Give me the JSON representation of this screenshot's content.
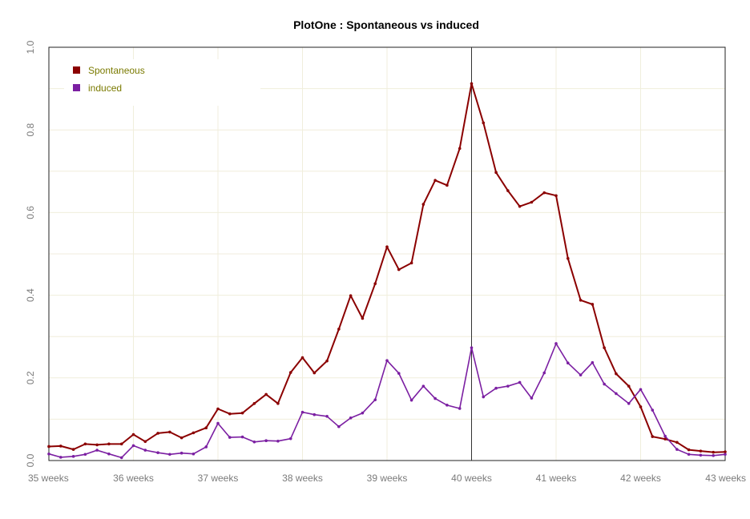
{
  "chart_data": {
    "type": "line",
    "title": "PlotOne : Spontaneous vs induced",
    "xlabel": "",
    "ylabel": "",
    "x_range": [
      35,
      43
    ],
    "ylim": [
      0,
      1.0
    ],
    "x_ticks": [
      {
        "value": 35,
        "label": "35 weeks"
      },
      {
        "value": 36,
        "label": "36 weeks"
      },
      {
        "value": 37,
        "label": "37 weeks"
      },
      {
        "value": 38,
        "label": "38 weeks"
      },
      {
        "value": 39,
        "label": "39 weeks"
      },
      {
        "value": 40,
        "label": "40 weeks"
      },
      {
        "value": 41,
        "label": "41 weeks"
      },
      {
        "value": 42,
        "label": "42 weeks"
      },
      {
        "value": 43,
        "label": "43 weeks"
      }
    ],
    "y_ticks": [
      {
        "value": 0.0,
        "label": "0.0"
      },
      {
        "value": 0.2,
        "label": "0.2"
      },
      {
        "value": 0.4,
        "label": "0.4"
      },
      {
        "value": 0.6,
        "label": "0.6"
      },
      {
        "value": 0.8,
        "label": "0.8"
      },
      {
        "value": 1.0,
        "label": "1.0"
      }
    ],
    "grid": true,
    "reference_line_x": 40,
    "legend_position": "top-left",
    "series": [
      {
        "name": "Spontaneous",
        "color": "#8b0000",
        "points": [
          [
            35.0,
            0.034
          ],
          [
            35.14,
            0.035
          ],
          [
            35.29,
            0.027
          ],
          [
            35.43,
            0.04
          ],
          [
            35.57,
            0.038
          ],
          [
            35.71,
            0.04
          ],
          [
            35.86,
            0.04
          ],
          [
            36.0,
            0.063
          ],
          [
            36.14,
            0.046
          ],
          [
            36.29,
            0.066
          ],
          [
            36.43,
            0.069
          ],
          [
            36.57,
            0.055
          ],
          [
            36.71,
            0.067
          ],
          [
            36.86,
            0.079
          ],
          [
            37.0,
            0.125
          ],
          [
            37.14,
            0.113
          ],
          [
            37.29,
            0.115
          ],
          [
            37.43,
            0.138
          ],
          [
            37.57,
            0.16
          ],
          [
            37.71,
            0.138
          ],
          [
            37.86,
            0.213
          ],
          [
            38.0,
            0.249
          ],
          [
            38.14,
            0.212
          ],
          [
            38.29,
            0.241
          ],
          [
            38.43,
            0.318
          ],
          [
            38.57,
            0.399
          ],
          [
            38.71,
            0.344
          ],
          [
            38.86,
            0.428
          ],
          [
            39.0,
            0.517
          ],
          [
            39.14,
            0.462
          ],
          [
            39.29,
            0.478
          ],
          [
            39.43,
            0.62
          ],
          [
            39.57,
            0.678
          ],
          [
            39.71,
            0.666
          ],
          [
            39.86,
            0.755
          ],
          [
            40.0,
            0.912
          ],
          [
            40.14,
            0.817
          ],
          [
            40.29,
            0.697
          ],
          [
            40.43,
            0.653
          ],
          [
            40.57,
            0.615
          ],
          [
            40.71,
            0.625
          ],
          [
            40.86,
            0.648
          ],
          [
            41.0,
            0.641
          ],
          [
            41.14,
            0.489
          ],
          [
            41.29,
            0.388
          ],
          [
            41.43,
            0.378
          ],
          [
            41.57,
            0.273
          ],
          [
            41.71,
            0.21
          ],
          [
            41.86,
            0.18
          ],
          [
            42.0,
            0.13
          ],
          [
            42.14,
            0.058
          ],
          [
            42.29,
            0.052
          ],
          [
            42.43,
            0.044
          ],
          [
            42.57,
            0.026
          ],
          [
            42.71,
            0.023
          ],
          [
            42.86,
            0.02
          ],
          [
            43.0,
            0.021
          ]
        ]
      },
      {
        "name": "induced",
        "color": "#7b1fa2",
        "points": [
          [
            35.0,
            0.016
          ],
          [
            35.14,
            0.008
          ],
          [
            35.29,
            0.01
          ],
          [
            35.43,
            0.015
          ],
          [
            35.57,
            0.025
          ],
          [
            35.71,
            0.016
          ],
          [
            35.86,
            0.007
          ],
          [
            36.0,
            0.036
          ],
          [
            36.14,
            0.025
          ],
          [
            36.29,
            0.019
          ],
          [
            36.43,
            0.015
          ],
          [
            36.57,
            0.018
          ],
          [
            36.71,
            0.016
          ],
          [
            36.86,
            0.033
          ],
          [
            37.0,
            0.09
          ],
          [
            37.14,
            0.056
          ],
          [
            37.29,
            0.057
          ],
          [
            37.43,
            0.045
          ],
          [
            37.57,
            0.048
          ],
          [
            37.71,
            0.047
          ],
          [
            37.86,
            0.053
          ],
          [
            38.0,
            0.117
          ],
          [
            38.14,
            0.111
          ],
          [
            38.29,
            0.107
          ],
          [
            38.43,
            0.082
          ],
          [
            38.57,
            0.103
          ],
          [
            38.71,
            0.115
          ],
          [
            38.86,
            0.147
          ],
          [
            39.0,
            0.242
          ],
          [
            39.14,
            0.211
          ],
          [
            39.29,
            0.146
          ],
          [
            39.43,
            0.18
          ],
          [
            39.57,
            0.15
          ],
          [
            39.71,
            0.134
          ],
          [
            39.86,
            0.126
          ],
          [
            40.0,
            0.273
          ],
          [
            40.14,
            0.154
          ],
          [
            40.29,
            0.175
          ],
          [
            40.43,
            0.18
          ],
          [
            40.57,
            0.189
          ],
          [
            40.71,
            0.151
          ],
          [
            40.86,
            0.212
          ],
          [
            41.0,
            0.283
          ],
          [
            41.14,
            0.236
          ],
          [
            41.29,
            0.207
          ],
          [
            41.43,
            0.237
          ],
          [
            41.57,
            0.185
          ],
          [
            41.71,
            0.162
          ],
          [
            41.86,
            0.138
          ],
          [
            42.0,
            0.172
          ],
          [
            42.14,
            0.122
          ],
          [
            42.29,
            0.059
          ],
          [
            42.43,
            0.027
          ],
          [
            42.57,
            0.015
          ],
          [
            42.71,
            0.013
          ],
          [
            42.86,
            0.012
          ],
          [
            43.0,
            0.015
          ]
        ]
      }
    ]
  }
}
